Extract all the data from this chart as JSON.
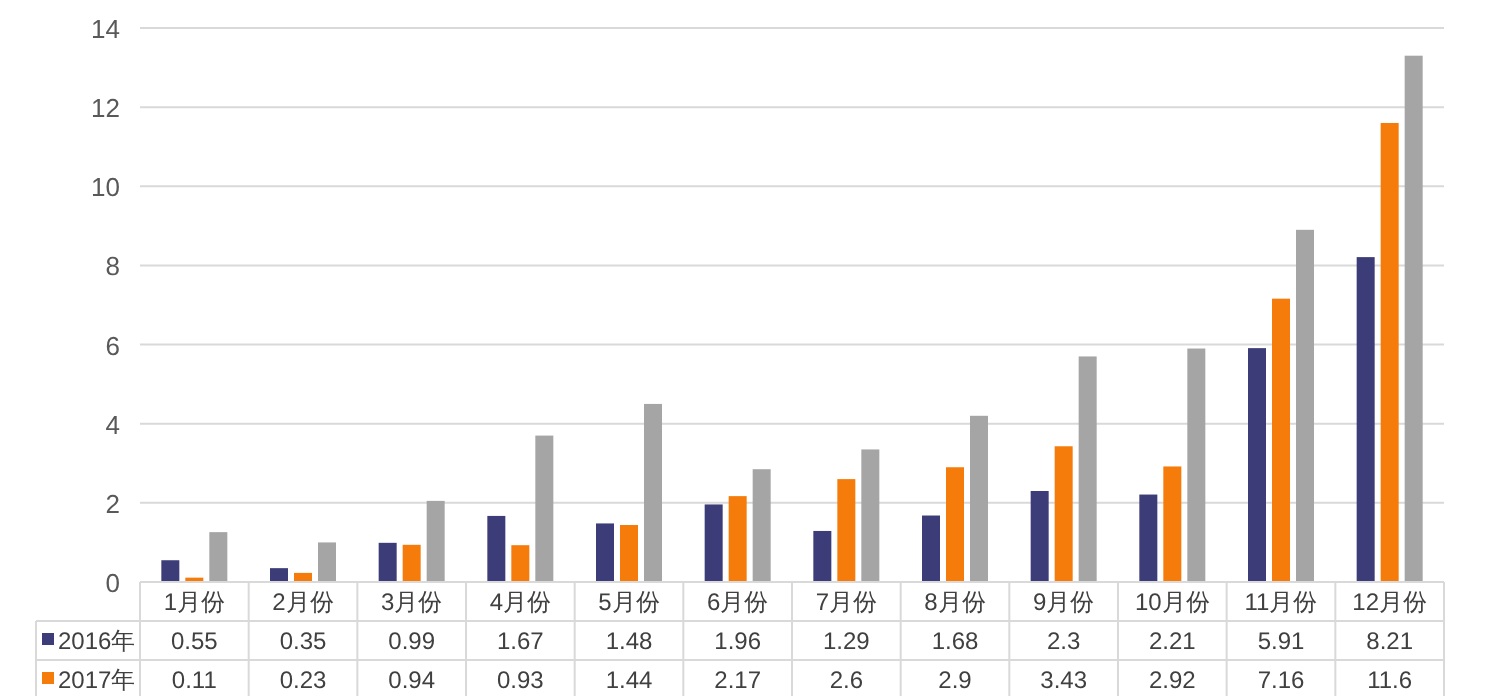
{
  "chart_data": {
    "type": "bar",
    "categories": [
      "1月份",
      "2月份",
      "3月份",
      "4月份",
      "5月份",
      "6月份",
      "7月份",
      "8月份",
      "9月份",
      "10月份",
      "11月份",
      "12月份"
    ],
    "series": [
      {
        "name": "2016年",
        "color": "#3c3c78",
        "values": [
          0.55,
          0.35,
          0.99,
          1.67,
          1.48,
          1.96,
          1.29,
          1.68,
          2.3,
          2.21,
          5.91,
          8.21
        ],
        "value_labels": [
          "0.55",
          "0.35",
          "0.99",
          "1.67",
          "1.48",
          "1.96",
          "1.29",
          "1.68",
          "2.3",
          "2.21",
          "5.91",
          "8.21"
        ]
      },
      {
        "name": "2017年",
        "color": "#f57c0a",
        "values": [
          0.11,
          0.23,
          0.94,
          0.93,
          1.44,
          2.17,
          2.6,
          2.9,
          3.43,
          2.92,
          7.16,
          11.6
        ],
        "value_labels": [
          "0.11",
          "0.23",
          "0.94",
          "0.93",
          "1.44",
          "2.17",
          "2.6",
          "2.9",
          "3.43",
          "2.92",
          "7.16",
          "11.6"
        ]
      },
      {
        "color": "#a5a5a5",
        "values": [
          1.26,
          1.0,
          2.05,
          3.7,
          4.5,
          2.85,
          3.35,
          4.2,
          5.7,
          5.9,
          8.9,
          13.3
        ]
      }
    ],
    "ylim": [
      0,
      14
    ],
    "yticks": [
      0,
      2,
      4,
      6,
      8,
      10,
      12,
      14
    ],
    "grid": "y",
    "legend": "bottom"
  }
}
